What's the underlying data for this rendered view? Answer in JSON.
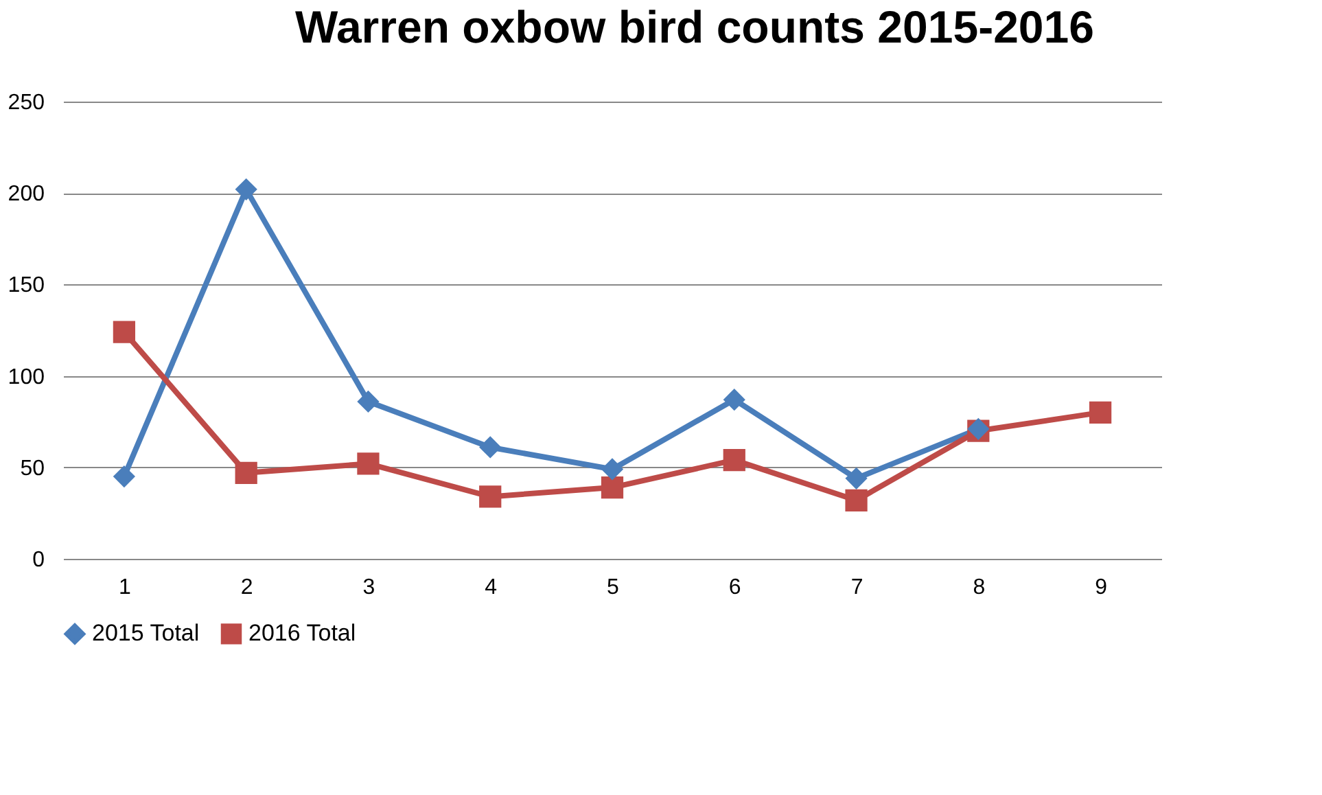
{
  "chart_data": {
    "type": "line",
    "title": "Warren oxbow bird counts 2015-2016",
    "categories": [
      "1",
      "2",
      "3",
      "4",
      "5",
      "6",
      "7",
      "8",
      "9"
    ],
    "series": [
      {
        "name": "2015 Total",
        "color": "#4a7ebb",
        "marker": "diamond",
        "values": [
          45,
          202,
          86,
          61,
          49,
          87,
          44,
          71,
          null
        ]
      },
      {
        "name": "2016 Total",
        "color": "#be4b48",
        "marker": "square",
        "values": [
          124,
          47,
          52,
          34,
          39,
          54,
          32,
          70,
          80
        ]
      }
    ],
    "ylim": [
      0,
      250
    ],
    "yticks": [
      0,
      50,
      100,
      150,
      200,
      250
    ],
    "grid": "y",
    "legend": "bottom",
    "line_style": "solid"
  }
}
